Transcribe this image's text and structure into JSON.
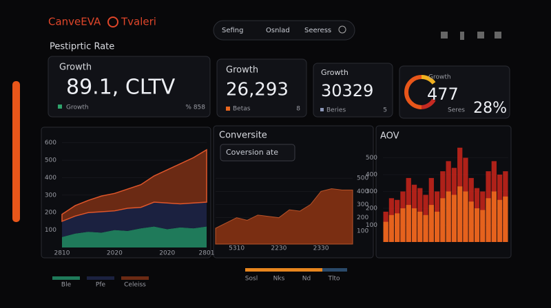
{
  "header": {
    "brand": "CanveEVA",
    "brand2": "Tvaleri",
    "nav": [
      "Sefing",
      "Osnlad",
      "Seeress"
    ],
    "section_title": "Pestiprtic Rate"
  },
  "kpis": [
    {
      "label": "Growth",
      "value": "89.1, CLTV",
      "foot": "Growth",
      "foot_right": "% 858"
    },
    {
      "label": "Growth",
      "value": "26,293",
      "foot": "Betas",
      "foot_right": "8"
    },
    {
      "label": "Growth",
      "value": "30329",
      "foot": "Beries",
      "foot_right": "5"
    },
    {
      "label": "Growth",
      "value": "477",
      "foot": "Seres",
      "foot_right": "28%"
    }
  ],
  "chart_data": [
    {
      "type": "stacked-area",
      "categories": [
        "2810",
        null,
        null,
        null,
        "2020",
        null,
        null,
        null,
        "2020",
        null,
        null,
        "2801"
      ],
      "ylim": [
        0,
        650
      ],
      "yticks": [
        100,
        200,
        300,
        400,
        500,
        600
      ],
      "series": [
        {
          "name": "Ble",
          "color": "#1f7a5a",
          "values": [
            60,
            80,
            90,
            85,
            100,
            95,
            110,
            120,
            105,
            115,
            110,
            120
          ]
        },
        {
          "name": "Pfe",
          "color": "#1b2140",
          "values": [
            90,
            100,
            110,
            120,
            110,
            130,
            120,
            140,
            150,
            135,
            145,
            140
          ]
        },
        {
          "name": "Celeiss",
          "color": "#6b2a14",
          "values": [
            40,
            60,
            70,
            90,
            100,
            110,
            130,
            150,
            190,
            230,
            260,
            300
          ]
        }
      ]
    },
    {
      "type": "area",
      "title": "Conversite",
      "dropdown": "Coversion ate",
      "categories": [
        null,
        null,
        "5310",
        null,
        null,
        null,
        "2230",
        null,
        null,
        null,
        "2330",
        null,
        null,
        null
      ],
      "ylim": [
        0,
        600
      ],
      "yticks": [
        100,
        200,
        300,
        400,
        500
      ],
      "series": [
        {
          "color": "#7a2e12",
          "values": [
            120,
            160,
            200,
            180,
            220,
            210,
            200,
            260,
            250,
            300,
            400,
            420,
            410,
            410
          ]
        }
      ],
      "footer_labels": [
        "Sosl",
        "Nks",
        "Nd",
        "Tlto"
      ]
    },
    {
      "type": "bar",
      "title": "AOV",
      "categories": [
        null,
        null,
        null,
        null,
        null,
        null,
        null,
        null,
        null,
        null,
        null,
        null,
        null,
        null,
        null,
        null,
        null,
        null,
        null,
        null,
        null,
        null
      ],
      "ylim": [
        0,
        600
      ],
      "yticks": [
        100,
        200,
        300,
        400,
        500
      ],
      "series": [
        {
          "color": "#b8231a",
          "values": [
            180,
            260,
            250,
            300,
            380,
            340,
            320,
            280,
            380,
            300,
            420,
            480,
            440,
            560,
            500,
            380,
            320,
            300,
            420,
            480,
            400,
            420
          ]
        },
        {
          "color": "#e8661e",
          "values": [
            120,
            160,
            170,
            200,
            220,
            200,
            180,
            160,
            220,
            180,
            260,
            300,
            280,
            330,
            300,
            240,
            200,
            190,
            260,
            300,
            250,
            270
          ]
        }
      ]
    }
  ]
}
